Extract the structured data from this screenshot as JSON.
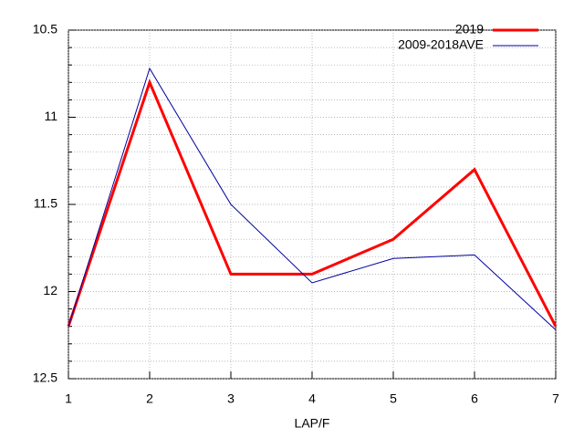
{
  "chart_data": {
    "type": "line",
    "x_label": "LAP/F",
    "x": [
      1,
      2,
      3,
      4,
      5,
      6,
      7
    ],
    "xlim": [
      1,
      7
    ],
    "xticks": [
      1,
      2,
      3,
      4,
      5,
      6,
      7
    ],
    "ylim": [
      12.5,
      10.5
    ],
    "yticks": [
      10.5,
      11,
      11.5,
      12,
      12.5
    ],
    "y_minor_ticks": [
      10.6,
      10.7,
      10.8,
      10.9,
      11.1,
      11.2,
      11.3,
      11.4,
      11.6,
      11.7,
      11.8,
      11.9,
      12.1,
      12.2,
      12.3,
      12.4
    ],
    "grid": true,
    "legend": "top-right",
    "series": [
      {
        "name": "2019",
        "color": "#ff0000",
        "width": 3,
        "values": [
          12.2,
          10.8,
          11.9,
          11.9,
          11.7,
          11.3,
          12.2
        ]
      },
      {
        "name": "2009-2018AVE",
        "color": "#0000a0",
        "width": 1,
        "values": [
          12.2,
          10.72,
          11.5,
          11.95,
          11.81,
          11.79,
          12.22
        ]
      }
    ]
  }
}
